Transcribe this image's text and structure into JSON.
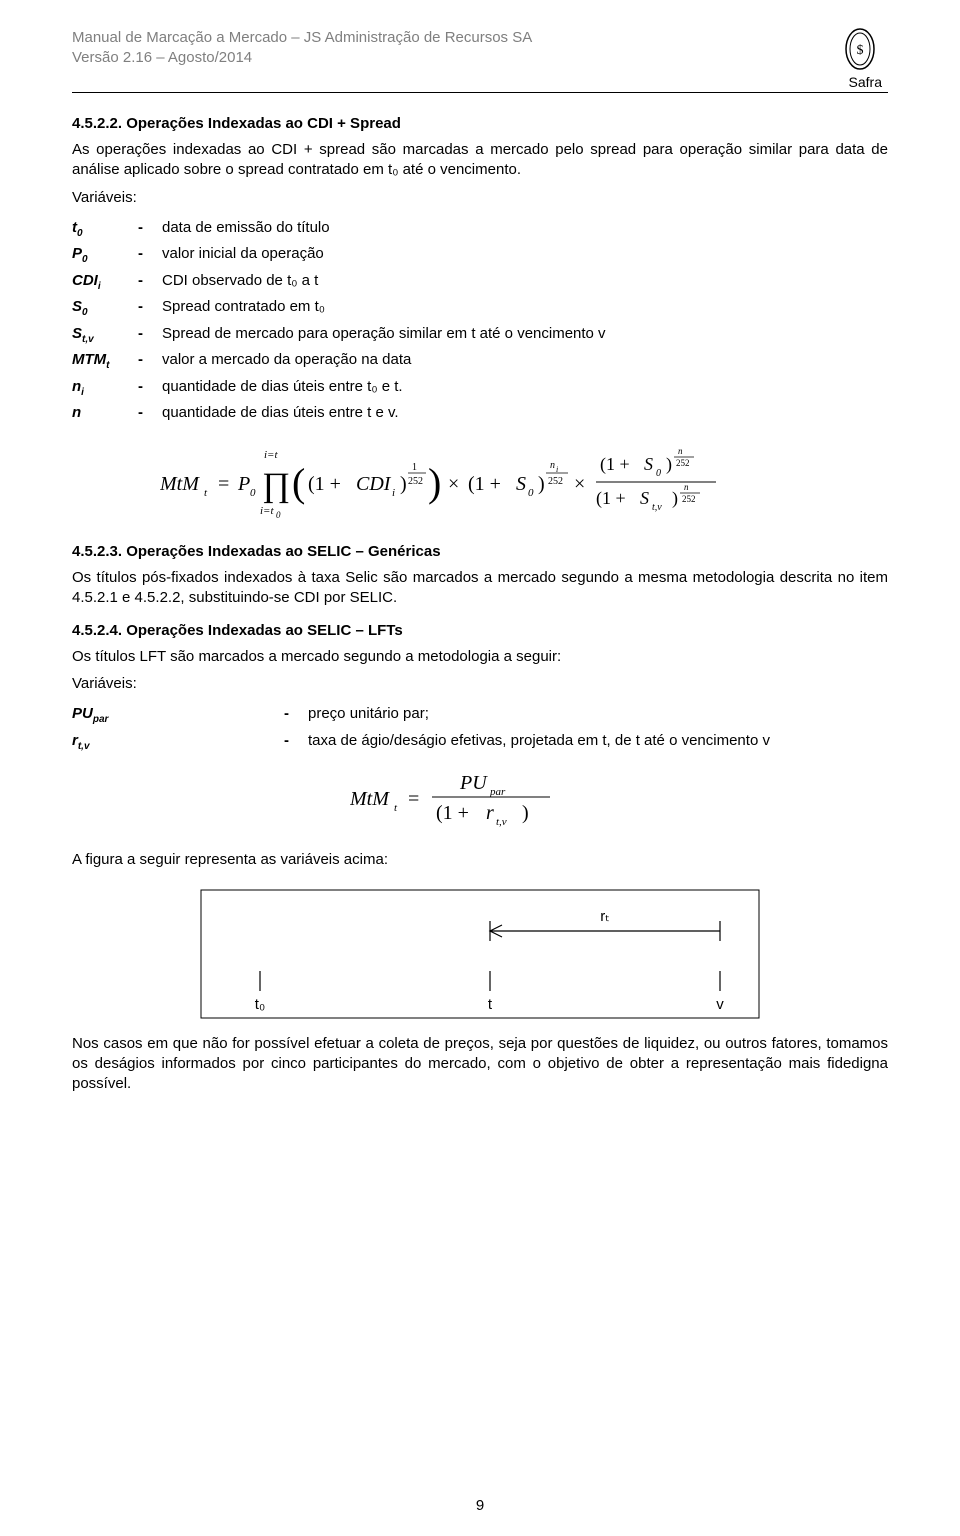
{
  "header": {
    "line1": "Manual de Marcação a Mercado – JS Administração de Recursos SA",
    "line2": "Versão 2.16 – Agosto/2014",
    "brand": "Safra",
    "text_color": "#7f7f7f",
    "rule_color": "#000000"
  },
  "colors": {
    "body_text": "#000000",
    "background": "#ffffff",
    "formula_text": "#000000",
    "diagram_stroke": "#000000"
  },
  "typography": {
    "body_font_size_pt": 11,
    "header_font_size_pt": 11,
    "font_family": "Arial"
  },
  "sections": [
    {
      "number": "4.5.2.2.",
      "title": "Operações Indexadas ao CDI + Spread",
      "para1": "As operações indexadas ao CDI + spread são marcadas a mercado pelo spread para operação similar para data de análise aplicado sobre o spread contratado em t₀ até o vencimento.",
      "vars_label": "Variáveis:",
      "vars": [
        {
          "sym": "t",
          "sub": "0",
          "desc": "data de emissão do título"
        },
        {
          "sym": "P",
          "sub": "0",
          "desc": "valor inicial da operação"
        },
        {
          "sym": "CDI",
          "sub": "i",
          "desc": "CDI observado de t₀ a t"
        },
        {
          "sym": "S",
          "sub": "0",
          "desc": "Spread contratado em t₀"
        },
        {
          "sym": "S",
          "sub": "t,v",
          "desc": "Spread de mercado para operação similar em t  até o vencimento v"
        },
        {
          "sym": "MTM",
          "sub": "t",
          "desc": "valor a mercado da operação na data"
        },
        {
          "sym": "n",
          "sub": "i",
          "desc": "quantidade de dias úteis entre t₀ e t."
        },
        {
          "sym": "n",
          "sub": "",
          "desc": "quantidade de dias úteis entre t e v."
        }
      ],
      "formula": {
        "display": "MtM_t = P_0 · ∏_{i=t0}^{i=t} ((1+CDI_i)^{1/252}) × (1+S_0)^{n_i/252} × (1+S_0)^{n/252} / (1+S_{t,v})^{n/252}",
        "font_size": 18
      }
    },
    {
      "number": "4.5.2.3.",
      "title": "Operações Indexadas ao SELIC – Genéricas",
      "para1": "Os títulos pós-fixados indexados à taxa Selic são marcados a mercado segundo a mesma metodologia descrita no item 4.5.2.1 e 4.5.2.2, substituindo-se CDI por SELIC."
    },
    {
      "number": "4.5.2.4.",
      "title": "Operações Indexadas ao SELIC – LFTs",
      "para1": "Os títulos LFT são marcados a mercado segundo a metodologia a seguir:",
      "vars_label": "Variáveis:",
      "vars2": [
        {
          "sym": "PU",
          "sub": "par",
          "desc": "preço unitário par;"
        },
        {
          "sym": "r",
          "sub": "t,v",
          "desc": "taxa de ágio/deságio efetivas, projetada em t, de t até o vencimento v"
        }
      ],
      "formula": {
        "display": "MtM_t = PU_par / (1 + r_{t,v})",
        "font_size": 18
      },
      "caption": "A figura a seguir representa as variáveis acima:",
      "diagram": {
        "tick_positions": [
          60,
          290,
          520
        ],
        "tick_labels": [
          "t₀",
          "t",
          "v"
        ],
        "arrow_from": 290,
        "arrow_to": 520,
        "arrow_label": "rₜ",
        "stroke": "#000000"
      }
    }
  ],
  "closing_para": "Nos casos em que não for possível efetuar a coleta de preços, seja por questões de liquidez, ou outros fatores, tomamos os deságios informados por cinco participantes do mercado, com o objetivo de obter a representação mais fidedigna possível.",
  "page_number": "9"
}
